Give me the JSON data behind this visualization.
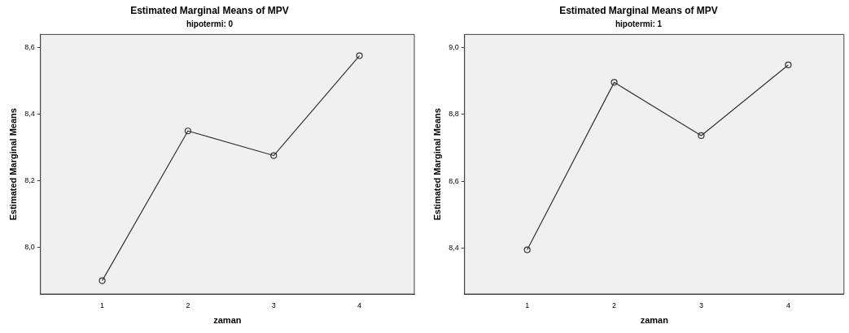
{
  "chart_data": [
    {
      "type": "line",
      "title": "Estimated Marginal Means of MPV",
      "subtitle": "hipotermi: 0",
      "xlabel": "zaman",
      "ylabel": "Estimated Marginal Means",
      "x": [
        1,
        2,
        3,
        4
      ],
      "series": [
        {
          "color": "#333333",
          "values": [
            7.9,
            8.35,
            8.276,
            8.576
          ]
        }
      ],
      "xlim": [
        0.28,
        4.64
      ],
      "xticks": [
        1,
        2,
        3,
        4
      ],
      "ylim": [
        7.86,
        8.64
      ],
      "yticks": [
        {
          "value": 8.0,
          "label": "8,0"
        },
        {
          "value": 8.2,
          "label": "8,2"
        },
        {
          "value": 8.4,
          "label": "8,4"
        },
        {
          "value": 8.6,
          "label": "8,6"
        }
      ],
      "grid": false,
      "legend": false,
      "marker": "circle",
      "line_style": "solid"
    },
    {
      "type": "line",
      "title": "Estimated Marginal Means of MPV",
      "subtitle": "hipotermi: 1",
      "xlabel": "zaman",
      "ylabel": "Estimated Marginal Means",
      "x": [
        1,
        2,
        3,
        4
      ],
      "series": [
        {
          "color": "#333333",
          "values": [
            8.396,
            8.896,
            8.737,
            8.948
          ]
        }
      ],
      "xlim": [
        0.28,
        4.64
      ],
      "xticks": [
        1,
        2,
        3,
        4
      ],
      "ylim": [
        8.264,
        9.039
      ],
      "yticks": [
        {
          "value": 8.4,
          "label": "8,4"
        },
        {
          "value": 8.6,
          "label": "8,6"
        },
        {
          "value": 8.8,
          "label": "8,8"
        },
        {
          "value": 9.0,
          "label": "9,0"
        }
      ],
      "grid": false,
      "legend": false,
      "marker": "circle",
      "line_style": "solid"
    }
  ]
}
